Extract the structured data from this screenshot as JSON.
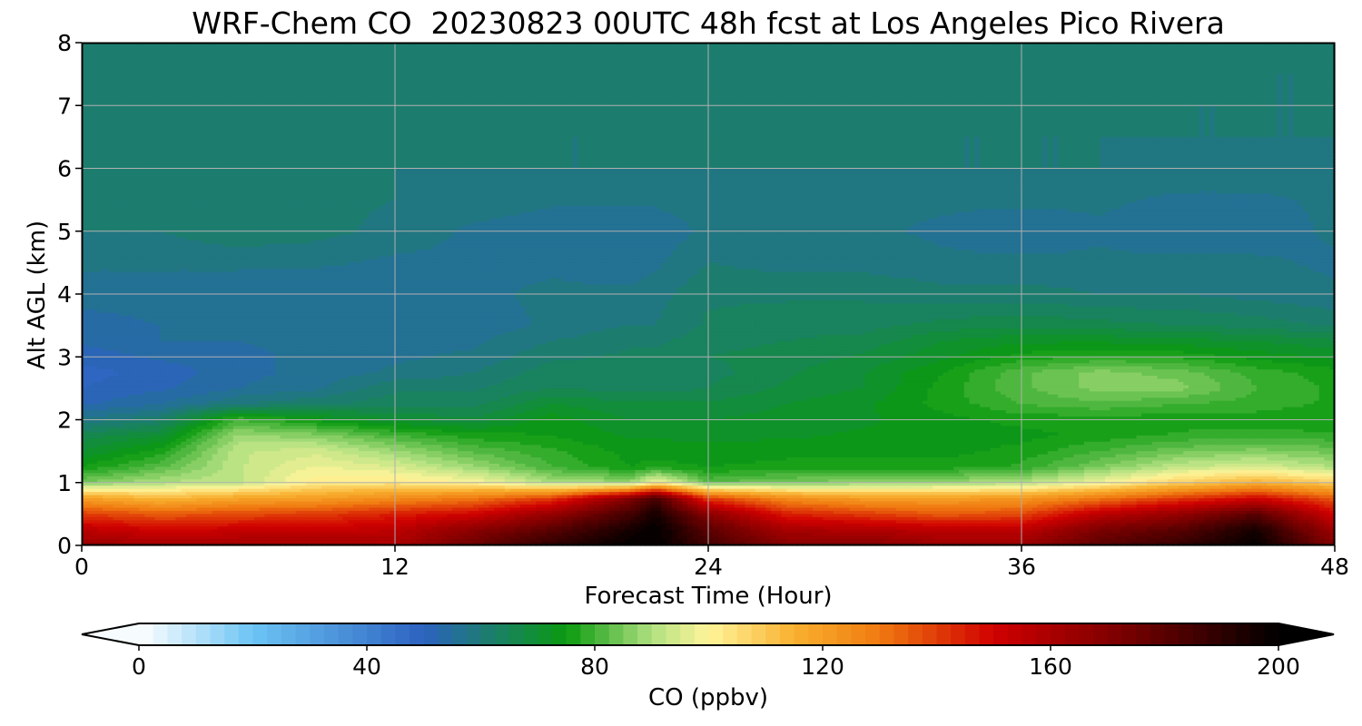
{
  "chart_data": {
    "type": "heatmap",
    "title": "WRF-Chem CO  20230823 00UTC 48h fcst at Los Angeles Pico Rivera",
    "xlabel": "Forecast Time (Hour)",
    "ylabel": "Alt AGL (km)",
    "xlim": [
      0,
      48
    ],
    "ylim": [
      0,
      8
    ],
    "x_ticks": [
      "0",
      "12",
      "24",
      "36",
      "48"
    ],
    "y_ticks": [
      "0",
      "1",
      "2",
      "3",
      "4",
      "5",
      "6",
      "7",
      "8"
    ],
    "grid": true,
    "colorbar": {
      "label": "CO  (ppbv)",
      "min": 0,
      "max": 200,
      "extend": "both",
      "ticks": [
        "0",
        "40",
        "80",
        "120",
        "160",
        "200"
      ],
      "stops": [
        {
          "value": 0,
          "color": "#ffffff"
        },
        {
          "value": 20,
          "color": "#6cc4f4"
        },
        {
          "value": 50,
          "color": "#2c62c0"
        },
        {
          "value": 60,
          "color": "#1e7a78"
        },
        {
          "value": 75,
          "color": "#0a9a10"
        },
        {
          "value": 90,
          "color": "#b0e080"
        },
        {
          "value": 100,
          "color": "#fff59a"
        },
        {
          "value": 115,
          "color": "#f8b030"
        },
        {
          "value": 130,
          "color": "#f07a10"
        },
        {
          "value": 150,
          "color": "#d00000"
        },
        {
          "value": 175,
          "color": "#700000"
        },
        {
          "value": 200,
          "color": "#000000"
        }
      ]
    },
    "hours": [
      0,
      3,
      6,
      9,
      12,
      15,
      18,
      21,
      22,
      24,
      27,
      30,
      33,
      36,
      39,
      42,
      45,
      48
    ],
    "altitudes_km": [
      0,
      0.25,
      0.5,
      0.75,
      1,
      1.25,
      1.5,
      1.75,
      2,
      2.25,
      2.5,
      2.75,
      3,
      3.25,
      3.5,
      4,
      4.5,
      5,
      5.5,
      6,
      6.5,
      7,
      7.5,
      8
    ],
    "co_ppbv": [
      [
        165,
        162,
        163,
        163,
        160,
        176,
        190,
        200,
        200,
        185,
        170,
        170,
        164,
        164,
        180,
        188,
        200,
        170
      ],
      [
        155,
        150,
        152,
        152,
        155,
        168,
        180,
        195,
        200,
        180,
        160,
        158,
        155,
        155,
        172,
        180,
        195,
        162
      ],
      [
        140,
        135,
        138,
        140,
        145,
        150,
        165,
        185,
        195,
        168,
        145,
        140,
        135,
        138,
        155,
        165,
        180,
        150
      ],
      [
        120,
        113,
        118,
        120,
        125,
        130,
        140,
        170,
        185,
        140,
        125,
        120,
        120,
        122,
        130,
        140,
        150,
        135
      ],
      [
        85,
        90,
        92,
        102,
        103,
        100,
        90,
        88,
        100,
        82,
        85,
        87,
        88,
        90,
        98,
        108,
        115,
        108
      ],
      [
        75,
        82,
        92,
        98,
        95,
        88,
        80,
        75,
        76,
        75,
        76,
        76,
        76,
        78,
        85,
        92,
        95,
        90
      ],
      [
        70,
        76,
        92,
        94,
        88,
        82,
        78,
        74,
        74,
        73,
        74,
        74,
        74,
        76,
        80,
        84,
        86,
        84
      ],
      [
        66,
        70,
        88,
        86,
        80,
        76,
        75,
        72,
        72,
        72,
        72,
        73,
        73,
        74,
        76,
        78,
        79,
        78
      ],
      [
        58,
        62,
        80,
        74,
        70,
        68,
        74,
        70,
        70,
        70,
        71,
        72,
        74,
        76,
        76,
        76,
        76,
        75
      ],
      [
        52,
        55,
        60,
        62,
        64,
        64,
        70,
        68,
        68,
        68,
        70,
        72,
        76,
        80,
        82,
        80,
        79,
        77
      ],
      [
        50,
        52,
        55,
        57,
        62,
        62,
        65,
        64,
        64,
        65,
        68,
        70,
        76,
        82,
        86,
        86,
        80,
        77
      ],
      [
        49,
        51,
        54,
        56,
        58,
        60,
        64,
        63,
        63,
        64,
        67,
        70,
        75,
        82,
        86,
        84,
        79,
        76
      ],
      [
        51,
        53,
        54,
        56,
        57,
        58,
        62,
        63,
        63,
        65,
        66,
        68,
        72,
        76,
        78,
        77,
        74,
        72
      ],
      [
        53,
        55,
        55,
        56,
        57,
        57,
        60,
        62,
        62,
        64,
        65,
        66,
        70,
        72,
        72,
        71,
        70,
        68
      ],
      [
        54,
        55,
        55,
        55,
        56,
        56,
        58,
        60,
        60,
        63,
        64,
        64,
        66,
        67,
        66,
        65,
        64,
        62
      ],
      [
        56,
        56,
        56,
        55,
        55,
        57,
        58,
        58,
        59,
        62,
        62,
        62,
        61,
        61,
        60,
        60,
        59,
        58
      ],
      [
        58,
        58,
        58,
        58,
        57,
        57,
        57,
        56,
        57,
        60,
        59,
        59,
        58,
        58,
        58,
        58,
        58,
        57
      ],
      [
        60,
        60,
        62,
        61,
        59,
        57,
        56,
        55,
        56,
        58,
        58,
        58,
        57,
        56,
        57,
        56,
        56,
        58
      ],
      [
        60,
        60,
        61,
        61,
        60,
        59,
        58,
        58,
        58,
        59,
        59,
        58,
        58,
        58,
        58,
        57,
        57,
        58
      ],
      [
        61,
        60,
        60,
        60,
        60,
        60,
        60,
        60,
        60,
        60,
        60,
        60,
        60,
        60,
        60,
        59,
        59,
        60
      ],
      [
        61,
        60,
        60,
        60,
        61,
        60,
        60,
        60,
        60,
        60,
        61,
        61,
        60,
        60,
        60,
        60,
        60,
        60
      ],
      [
        60,
        60,
        60,
        60,
        61,
        61,
        61,
        61,
        61,
        61,
        61,
        61,
        61,
        61,
        61,
        60,
        60,
        60
      ],
      [
        60,
        60,
        60,
        60,
        61,
        61,
        61,
        61,
        61,
        61,
        61,
        61,
        61,
        61,
        61,
        61,
        60,
        60
      ],
      [
        60,
        60,
        60,
        60,
        60,
        60,
        60,
        60,
        60,
        60,
        60,
        61,
        61,
        61,
        61,
        61,
        61,
        60
      ]
    ]
  }
}
